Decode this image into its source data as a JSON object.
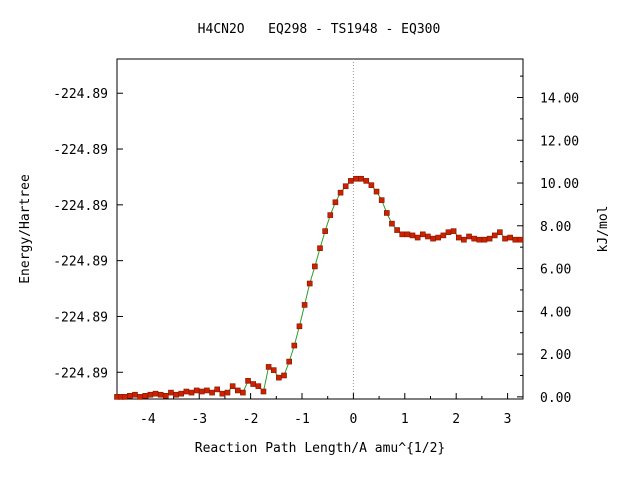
{
  "chart_data": {
    "type": "scatter",
    "title": "H4CN2O   EQ298 - TS1948 - EQ300",
    "xlabel": "Reaction Path Length/A amu^{1/2}",
    "ylabel_left": "Energy/Hartree",
    "ylabel_right": "kJ/mol",
    "xlim": [
      -4.6,
      3.3
    ],
    "ylim_kjmol": [
      -0.1,
      15.8
    ],
    "x_ticks": [
      -4,
      -3,
      -2,
      -1,
      0,
      1,
      2,
      3
    ],
    "x_tick_labels": [
      "-4",
      "-3",
      "-2",
      "-1",
      "0",
      "1",
      "2",
      "3"
    ],
    "left_ticks_kjmol": [
      1.15,
      3.76,
      6.37,
      8.98,
      11.59,
      14.2
    ],
    "left_tick_labels": [
      "-224.89",
      "-224.89",
      "-224.89",
      "-224.89",
      "-224.89",
      "-224.89"
    ],
    "right_ticks_kjmol": [
      0,
      2,
      4,
      6,
      8,
      10,
      12,
      14
    ],
    "right_tick_labels": [
      "0.00",
      "2.00",
      "4.00",
      "6.00",
      "8.00",
      "10.00",
      "12.00",
      "14.00"
    ],
    "ts_marker_x": 0,
    "colors": {
      "points": "#cc2200",
      "line": "#2a9d2a",
      "ts_line": "#999999"
    },
    "series": [
      {
        "x": [
          -4.6,
          -4.52,
          -4.45,
          -4.35,
          -4.25,
          -4.15,
          -4.05,
          -3.95,
          -3.85,
          -3.75,
          -3.65,
          -3.55,
          -3.45,
          -3.35,
          -3.25,
          -3.15,
          -3.05,
          -2.95,
          -2.85,
          -2.75,
          -2.65,
          -2.55,
          -2.45,
          -2.35,
          -2.25,
          -2.15,
          -2.05,
          -1.95,
          -1.85,
          -1.75,
          -1.65,
          -1.55,
          -1.45,
          -1.35,
          -1.25,
          -1.15,
          -1.05,
          -0.95,
          -0.85,
          -0.75,
          -0.65,
          -0.55,
          -0.45,
          -0.35,
          -0.25,
          -0.15,
          -0.05,
          0.05,
          0.15,
          0.25,
          0.35,
          0.45,
          0.55,
          0.65,
          0.75,
          0.85,
          0.95,
          1.05,
          1.15,
          1.25,
          1.35,
          1.45,
          1.55,
          1.65,
          1.75,
          1.85,
          1.95,
          2.05,
          2.15,
          2.25,
          2.35,
          2.45,
          2.55,
          2.65,
          2.75,
          2.85,
          2.95,
          3.05,
          3.15,
          3.25
        ],
        "y": [
          0.0,
          0.0,
          0.0,
          0.05,
          0.1,
          0.0,
          0.05,
          0.1,
          0.15,
          0.1,
          0.05,
          0.2,
          0.1,
          0.15,
          0.25,
          0.2,
          0.3,
          0.25,
          0.3,
          0.2,
          0.35,
          0.15,
          0.2,
          0.5,
          0.3,
          0.2,
          0.75,
          0.6,
          0.5,
          0.25,
          1.4,
          1.25,
          0.9,
          1.0,
          1.65,
          2.4,
          3.3,
          4.3,
          5.3,
          6.1,
          6.95,
          7.75,
          8.5,
          9.1,
          9.55,
          9.85,
          10.1,
          10.2,
          10.2,
          10.1,
          9.9,
          9.6,
          9.2,
          8.6,
          8.1,
          7.8,
          7.6,
          7.6,
          7.55,
          7.45,
          7.6,
          7.5,
          7.4,
          7.45,
          7.55,
          7.7,
          7.75,
          7.45,
          7.35,
          7.5,
          7.4,
          7.35,
          7.35,
          7.4,
          7.55,
          7.7,
          7.4,
          7.45,
          7.35,
          7.35
        ]
      }
    ]
  }
}
